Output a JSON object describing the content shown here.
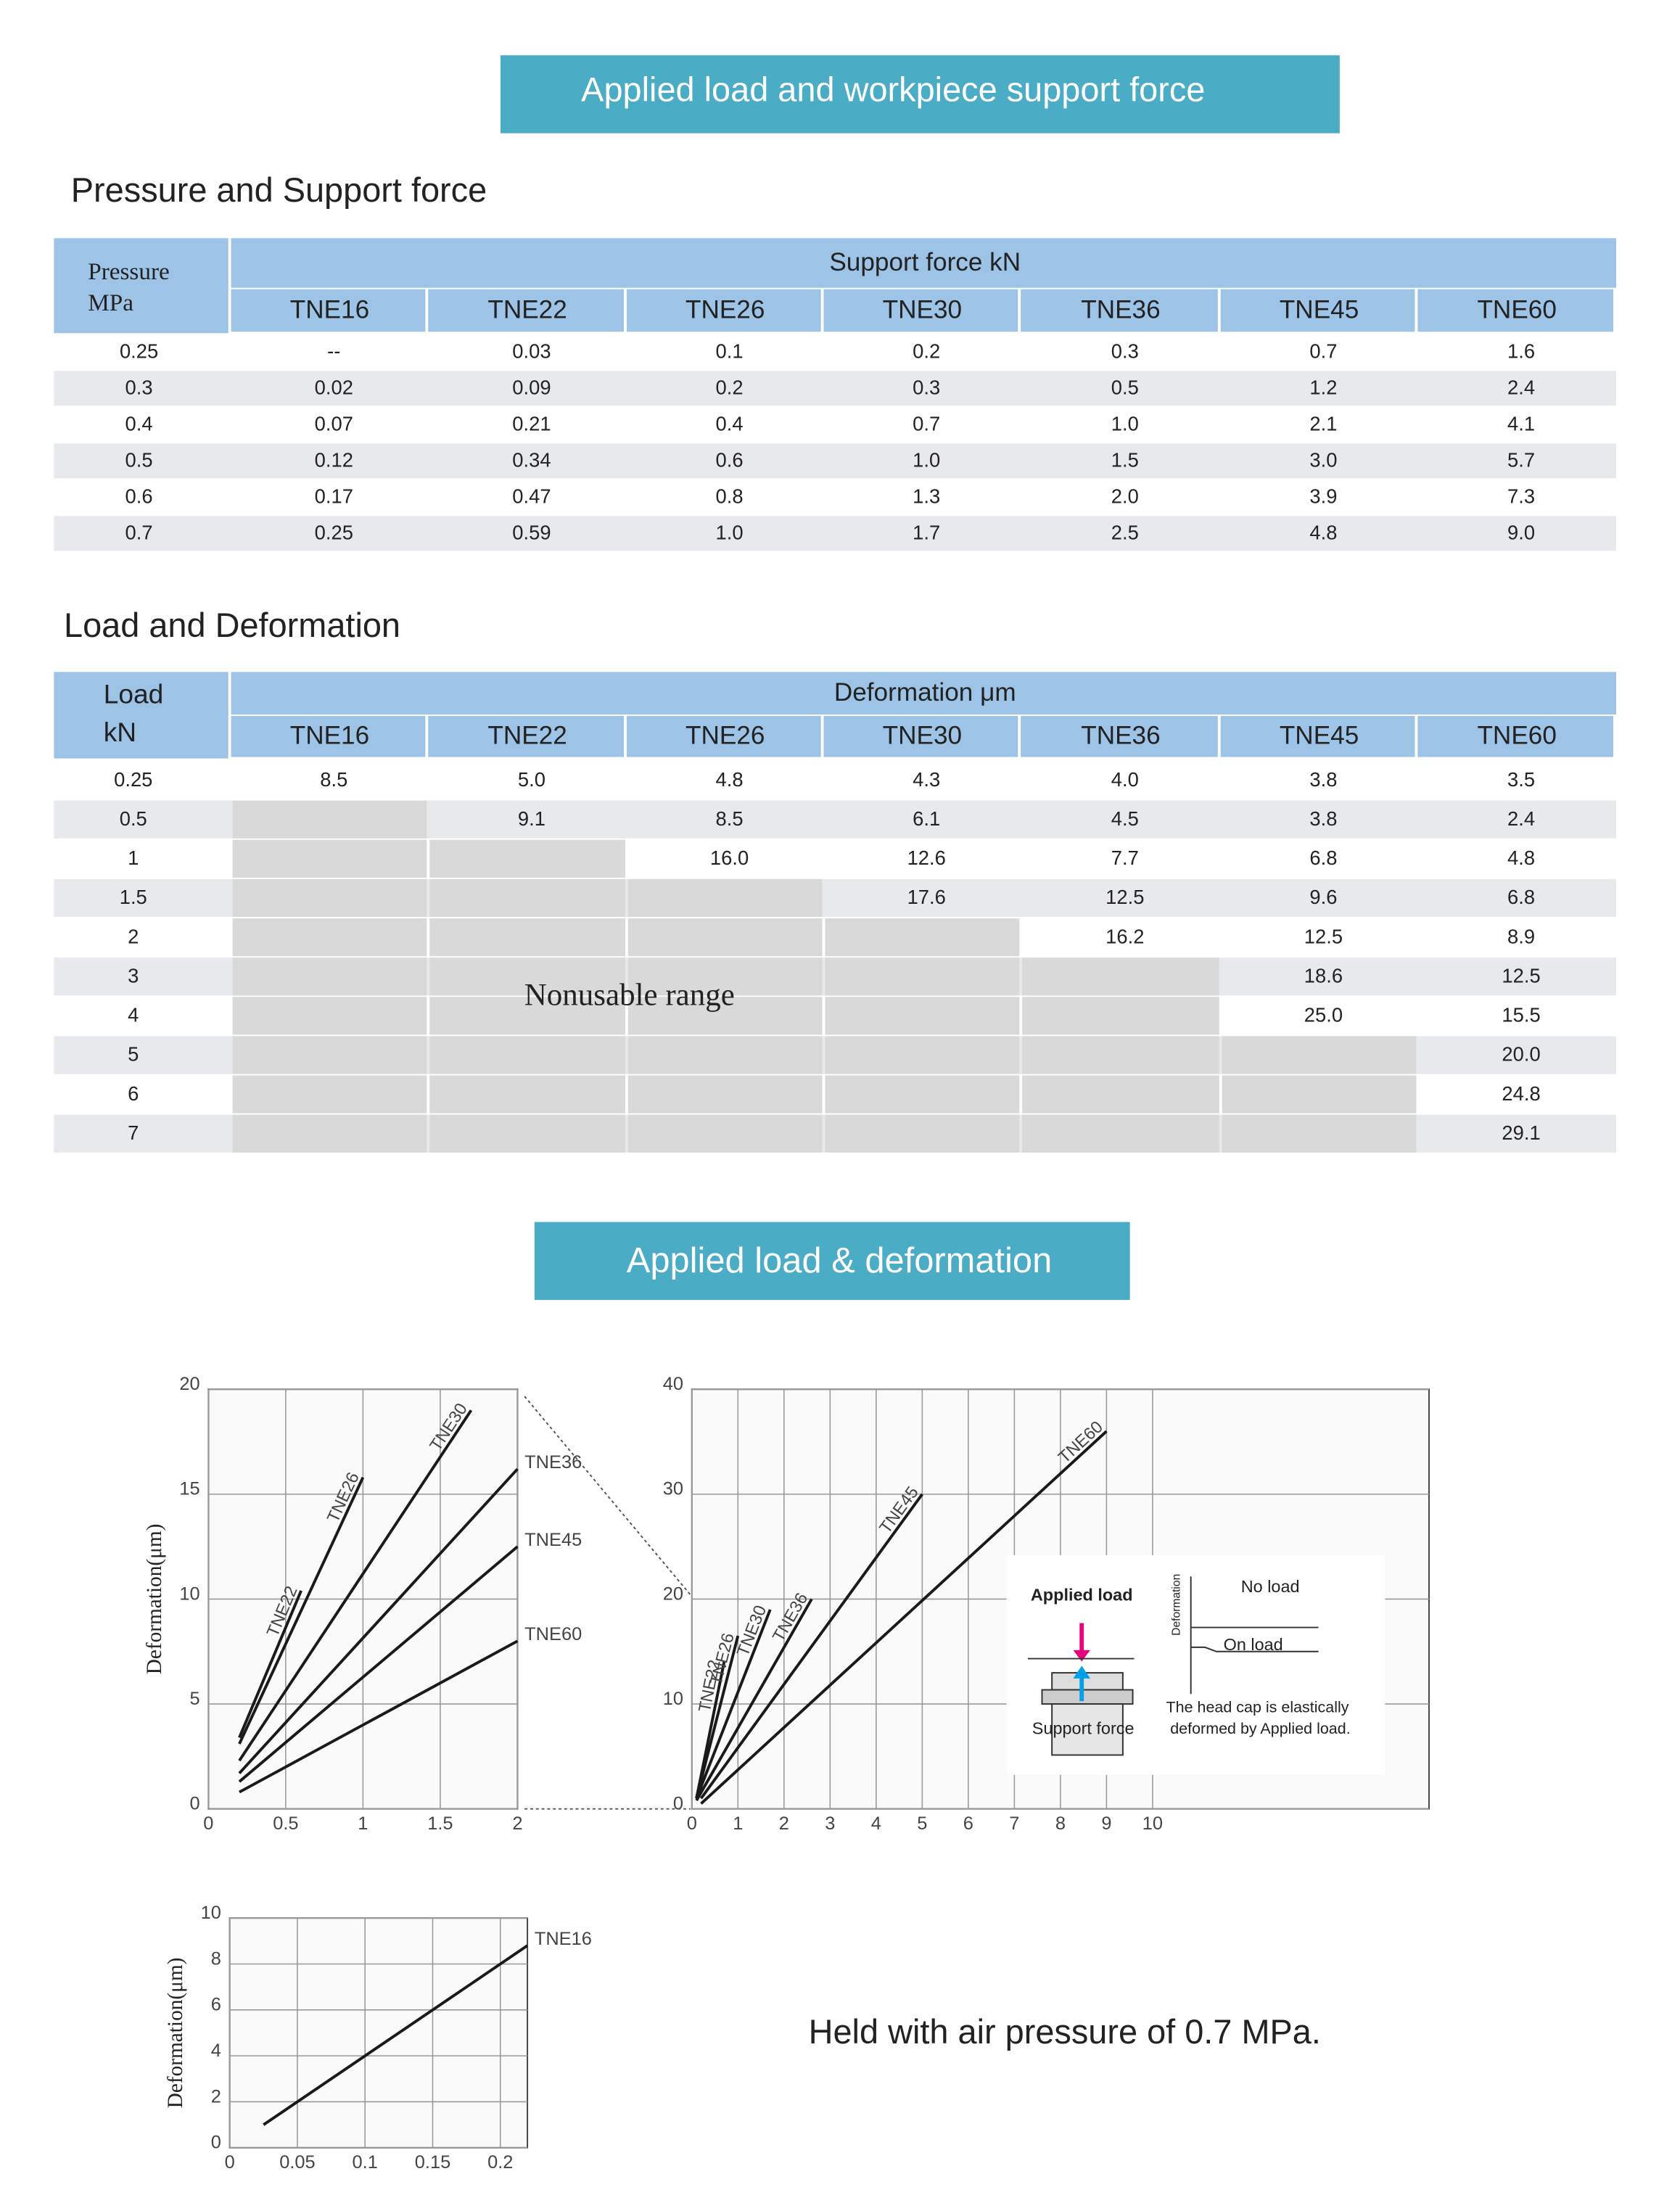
{
  "header": {
    "title": "Applied load and workpiece support force"
  },
  "table1": {
    "title": "Pressure and Support force",
    "corner": [
      "Pressure",
      "MPa"
    ],
    "group": "Support force kN",
    "columns": [
      "TNE16",
      "TNE22",
      "TNE26",
      "TNE30",
      "TNE36",
      "TNE45",
      "TNE60"
    ],
    "rows": [
      [
        "0.25",
        "--",
        "0.03",
        "0.1",
        "0.2",
        "0.3",
        "0.7",
        "1.6"
      ],
      [
        "0.3",
        "0.02",
        "0.09",
        "0.2",
        "0.3",
        "0.5",
        "1.2",
        "2.4"
      ],
      [
        "0.4",
        "0.07",
        "0.21",
        "0.4",
        "0.7",
        "1.0",
        "2.1",
        "4.1"
      ],
      [
        "0.5",
        "0.12",
        "0.34",
        "0.6",
        "1.0",
        "1.5",
        "3.0",
        "5.7"
      ],
      [
        "0.6",
        "0.17",
        "0.47",
        "0.8",
        "1.3",
        "2.0",
        "3.9",
        "7.3"
      ],
      [
        "0.7",
        "0.25",
        "0.59",
        "1.0",
        "1.7",
        "2.5",
        "4.8",
        "9.0"
      ]
    ]
  },
  "table2": {
    "title": "Load and Deformation",
    "corner": [
      "Load",
      "kN"
    ],
    "group": "Deformation μm",
    "columns": [
      "TNE16",
      "TNE22",
      "TNE26",
      "TNE30",
      "TNE36",
      "TNE45",
      "TNE60"
    ],
    "note": "Nonusable range",
    "rows": [
      [
        "0.25",
        "8.5",
        "5.0",
        "4.8",
        "4.3",
        "4.0",
        "3.8",
        "3.5"
      ],
      [
        "0.5",
        null,
        "9.1",
        "8.5",
        "6.1",
        "4.5",
        "3.8",
        "2.4"
      ],
      [
        "1",
        null,
        null,
        "16.0",
        "12.6",
        "7.7",
        "6.8",
        "4.8"
      ],
      [
        "1.5",
        null,
        null,
        null,
        "17.6",
        "12.5",
        "9.6",
        "6.8"
      ],
      [
        "2",
        null,
        null,
        null,
        null,
        "16.2",
        "12.5",
        "8.9"
      ],
      [
        "3",
        null,
        null,
        null,
        null,
        null,
        "18.6",
        "12.5"
      ],
      [
        "4",
        null,
        null,
        null,
        null,
        null,
        "25.0",
        "15.5"
      ],
      [
        "5",
        null,
        null,
        null,
        null,
        null,
        null,
        "20.0"
      ],
      [
        "6",
        null,
        null,
        null,
        null,
        null,
        null,
        "24.8"
      ],
      [
        "7",
        null,
        null,
        null,
        null,
        null,
        null,
        "29.1"
      ]
    ]
  },
  "header2": {
    "title": "Applied load & deformation"
  },
  "chart_data": [
    {
      "type": "line",
      "y_label": "Deformation(μm)",
      "color": "#1a1a1a",
      "grid": true,
      "xlim": [
        0,
        2
      ],
      "xticks": [
        0,
        0.5,
        1,
        1.5,
        2
      ],
      "ylim": [
        0,
        20
      ],
      "yticks": [
        0,
        5,
        10,
        15,
        20
      ],
      "series": [
        {
          "name": "TNE22",
          "x": [
            0.2,
            0.6
          ],
          "values": [
            3.4,
            10.4
          ]
        },
        {
          "name": "TNE26",
          "x": [
            0.2,
            1.0
          ],
          "values": [
            3.1,
            15.8
          ]
        },
        {
          "name": "TNE30",
          "x": [
            0.2,
            1.7
          ],
          "values": [
            2.3,
            19.0
          ]
        },
        {
          "name": "TNE36",
          "x": [
            0.2,
            2.0
          ],
          "values": [
            1.7,
            16.2
          ]
        },
        {
          "name": "TNE45",
          "x": [
            0.2,
            2.0
          ],
          "values": [
            1.3,
            12.5
          ]
        },
        {
          "name": "TNE60",
          "x": [
            0.2,
            2.0
          ],
          "values": [
            0.8,
            8.0
          ]
        }
      ]
    },
    {
      "type": "line",
      "color": "#1a1a1a",
      "grid": true,
      "xlim": [
        0,
        16
      ],
      "xticks": [
        0,
        1,
        2,
        3,
        4,
        5,
        6,
        7,
        8,
        9,
        10
      ],
      "ylim": [
        0,
        40
      ],
      "yticks": [
        0,
        10,
        20,
        30,
        40
      ],
      "series": [
        {
          "name": "TNE22",
          "x": [
            0.1,
            0.7
          ],
          "values": [
            1.0,
            14.0
          ]
        },
        {
          "name": "TNE26",
          "x": [
            0.1,
            1.0
          ],
          "values": [
            1.0,
            16.5
          ]
        },
        {
          "name": "TNE30",
          "x": [
            0.1,
            1.7
          ],
          "values": [
            1.0,
            19.0
          ]
        },
        {
          "name": "TNE36",
          "x": [
            0.1,
            2.6
          ],
          "values": [
            0.8,
            20.0
          ]
        },
        {
          "name": "TNE45",
          "x": [
            0.2,
            5.0
          ],
          "values": [
            1.0,
            30.0
          ]
        },
        {
          "name": "TNE60",
          "x": [
            0.2,
            9.0
          ],
          "values": [
            0.5,
            36.0
          ]
        }
      ]
    },
    {
      "type": "line",
      "y_label": "Deformation(μm)",
      "color": "#1a1a1a",
      "grid": true,
      "xlim": [
        0,
        0.22
      ],
      "xticks": [
        0,
        0.05,
        0.1,
        0.15,
        0.2
      ],
      "ylim": [
        0,
        10
      ],
      "yticks": [
        0,
        2,
        4,
        6,
        8,
        10
      ],
      "series": [
        {
          "name": "TNE16",
          "x": [
            0.025,
            0.22
          ],
          "values": [
            1.0,
            8.8
          ]
        }
      ]
    }
  ],
  "inset": {
    "applied": "Applied load",
    "support": "Support force",
    "deformation": "Deformation",
    "no_load": "No load",
    "on_load": "On load",
    "note": [
      "The head cap is elastically",
      "deformed by Applied load."
    ]
  },
  "footnote": "Held with air pressure of 0.7 MPa."
}
